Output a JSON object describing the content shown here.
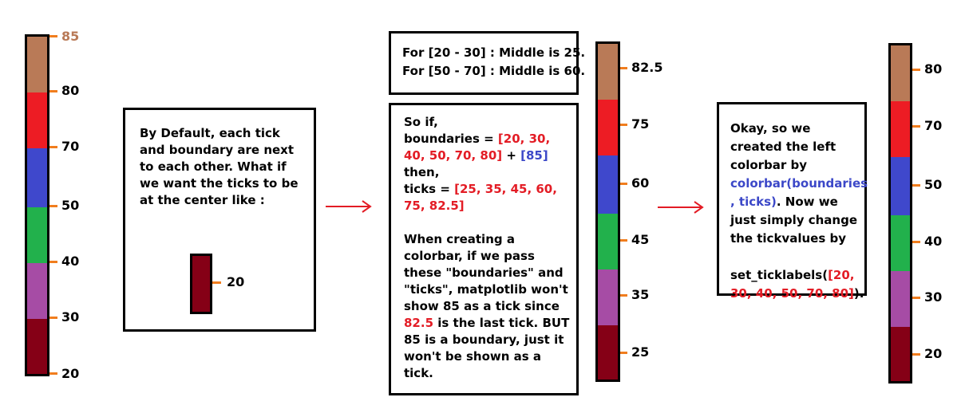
{
  "colors": {
    "c1": "#850016",
    "c2": "#a64ca5",
    "c3": "#22b14c",
    "c4": "#3f48cc",
    "c5": "#ed1c24",
    "c6": "#b97a57",
    "tick": "#f07d1e",
    "red_text": "#e31c25",
    "blue_text": "#3c48c8"
  },
  "left_colorbar": {
    "ticks": [
      "20",
      "30",
      "40",
      "50",
      "70",
      "80",
      "85"
    ]
  },
  "middle_colorbar": {
    "ticks": [
      "25",
      "35",
      "45",
      "60",
      "75",
      "82.5"
    ]
  },
  "right_colorbar": {
    "ticks": [
      "20",
      "30",
      "40",
      "50",
      "70",
      "80"
    ]
  },
  "box1": {
    "text": "By Default, each tick and boundary are next to each other. What if we want the ticks to be at the center like :",
    "example_tick": "20"
  },
  "box2": {
    "line1": "For [20 - 30] : Middle is 25.",
    "line2": "For [50 - 70] : Middle is 60."
  },
  "box3": {
    "so_if": "So if,",
    "boundaries_label": "boundaries = ",
    "boundaries_value": "[20, 30, 40, 50, 70, 80]",
    "plus": " + ",
    "extra_boundary": "[85]",
    "then": "then,",
    "ticks_label": "ticks = ",
    "ticks_value": "[25, 35, 45, 60, 75, 82.5]",
    "para_1": "When creating a colorbar, if we pass these \"boundaries\" and \"ticks\", matplotlib won't show 85 as a tick since ",
    "para_highlight": "82.5",
    "para_2": " is the last tick. BUT 85 is a boundary, just it won't be shown as a tick."
  },
  "box4": {
    "part1": "Okay, so we created the left colorbar by ",
    "func": "colorbar(boundaries , ticks)",
    "part2": ". Now we just simply change the tickvalues by",
    "call_prefix": "set_ticklabels(",
    "call_args": "[20, 30, 40, 50, 70, 80]",
    "call_suffix": ")."
  }
}
